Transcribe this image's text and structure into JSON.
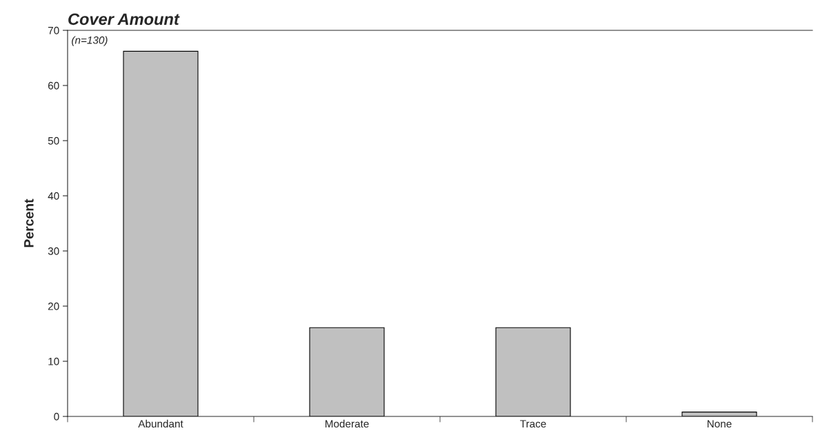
{
  "chart_data": {
    "type": "bar",
    "title": "Cover Amount",
    "ylabel": "Percent",
    "categories": [
      "Abundant",
      "Moderate",
      "Trace",
      "None"
    ],
    "values": [
      66.2,
      16.1,
      16.1,
      0.8
    ],
    "color": "#c0c0c0",
    "ylim": [
      0,
      70
    ],
    "yticks": [
      0,
      10,
      20,
      30,
      40,
      50,
      60,
      70
    ],
    "grid": false,
    "annotations": [
      "(n=130)"
    ]
  }
}
